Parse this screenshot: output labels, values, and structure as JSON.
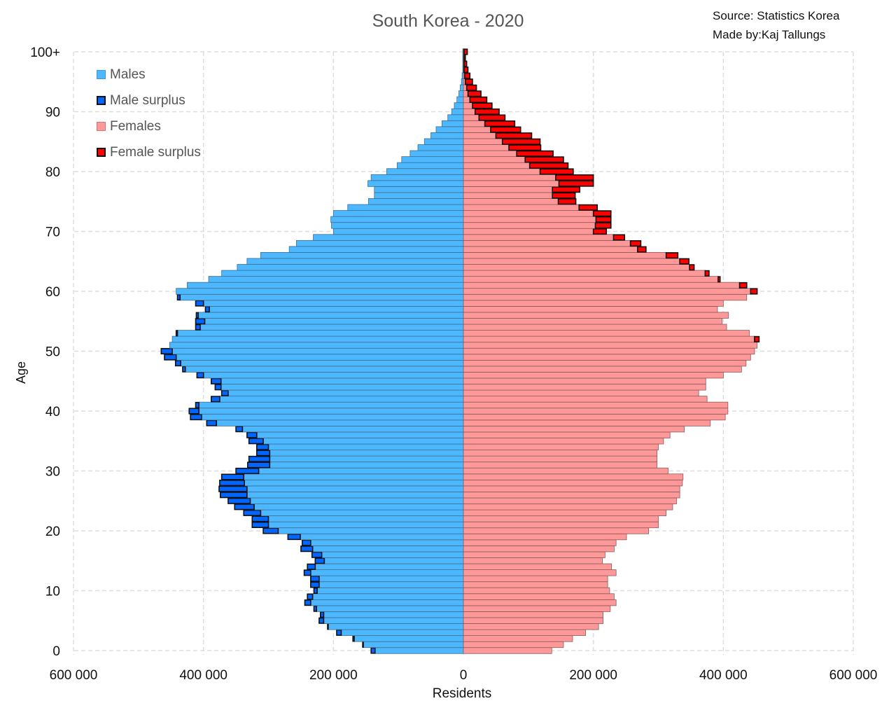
{
  "chart_data": {
    "type": "bar",
    "orientation": "horizontal-population-pyramid",
    "title": "South Korea - 2020",
    "source_lines": [
      "Source: Statistics Korea",
      "Made by:Kaj Tallungs"
    ],
    "xlabel": "Residents",
    "ylabel": "Age",
    "xlim": [
      -600000,
      600000
    ],
    "x_ticks": [
      {
        "value": -600000,
        "label": "600 000"
      },
      {
        "value": -400000,
        "label": "400 000"
      },
      {
        "value": -200000,
        "label": "200 000"
      },
      {
        "value": 0,
        "label": "0"
      },
      {
        "value": 200000,
        "label": "200 000"
      },
      {
        "value": 400000,
        "label": "400 000"
      },
      {
        "value": 600000,
        "label": "600 000"
      }
    ],
    "y_ticks": [
      {
        "value": 0,
        "label": "0"
      },
      {
        "value": 10,
        "label": "10"
      },
      {
        "value": 20,
        "label": "20"
      },
      {
        "value": 30,
        "label": "30"
      },
      {
        "value": 40,
        "label": "40"
      },
      {
        "value": 50,
        "label": "50"
      },
      {
        "value": 60,
        "label": "60"
      },
      {
        "value": 70,
        "label": "70"
      },
      {
        "value": 80,
        "label": "80"
      },
      {
        "value": 90,
        "label": "90"
      },
      {
        "value": 100,
        "label": "100+"
      }
    ],
    "grid": true,
    "legend_position": "top-left",
    "legend": [
      {
        "label": "Males",
        "color": "#4db8ff"
      },
      {
        "label": "Male surplus",
        "color": "#0066ff"
      },
      {
        "label": "Females",
        "color": "#ff9999"
      },
      {
        "label": "Female surplus",
        "color": "#ff0000"
      }
    ],
    "colors": {
      "males": "#4db8ff",
      "male_surplus": "#0066ff",
      "females": "#ff9999",
      "female_surplus": "#ff0000",
      "grid": "#dddddd"
    },
    "ages": [
      0,
      1,
      2,
      3,
      4,
      5,
      6,
      7,
      8,
      9,
      10,
      11,
      12,
      13,
      14,
      15,
      16,
      17,
      18,
      19,
      20,
      21,
      22,
      23,
      24,
      25,
      26,
      27,
      28,
      29,
      30,
      31,
      32,
      33,
      34,
      35,
      36,
      37,
      38,
      39,
      40,
      41,
      42,
      43,
      44,
      45,
      46,
      47,
      48,
      49,
      50,
      51,
      52,
      53,
      54,
      55,
      56,
      57,
      58,
      59,
      60,
      61,
      62,
      63,
      64,
      65,
      66,
      67,
      68,
      69,
      70,
      71,
      72,
      73,
      74,
      75,
      76,
      77,
      78,
      79,
      80,
      81,
      82,
      83,
      84,
      85,
      86,
      87,
      88,
      89,
      90,
      91,
      92,
      93,
      94,
      95,
      96,
      97,
      98,
      99,
      100
    ],
    "series": [
      {
        "name": "Males",
        "values": [
          142000,
          155000,
          170000,
          195000,
          209000,
          222000,
          220000,
          230000,
          244000,
          240000,
          230000,
          235000,
          235000,
          245000,
          240000,
          228000,
          233000,
          250000,
          248000,
          270000,
          308000,
          325000,
          325000,
          338000,
          352000,
          362000,
          374000,
          376000,
          375000,
          372000,
          350000,
          332000,
          330000,
          318000,
          318000,
          330000,
          333000,
          350000,
          395000,
          420000,
          422000,
          412000,
          388000,
          372000,
          382000,
          388000,
          410000,
          432000,
          443000,
          460000,
          465000,
          452000,
          448000,
          442000,
          412000,
          412000,
          411000,
          397000,
          412000,
          440000,
          442000,
          425000,
          392000,
          372000,
          348000,
          333000,
          312000,
          268000,
          257000,
          231000,
          200000,
          203000,
          204000,
          200000,
          178000,
          146000,
          137000,
          137000,
          147000,
          142000,
          118000,
          102000,
          95000,
          82000,
          70000,
          60000,
          50000,
          42000,
          33000,
          24000,
          18000,
          14000,
          10000,
          7000,
          5000,
          3000,
          2000,
          1000,
          1000,
          1000,
          1000
        ]
      },
      {
        "name": "Females",
        "values": [
          136000,
          154000,
          168000,
          188000,
          208000,
          215000,
          215000,
          226000,
          235000,
          232000,
          225000,
          222000,
          222000,
          235000,
          228000,
          214000,
          218000,
          232000,
          235000,
          251000,
          285000,
          300000,
          300000,
          312000,
          322000,
          328000,
          333000,
          333000,
          337000,
          338000,
          315000,
          298000,
          298000,
          298000,
          300000,
          308000,
          318000,
          340000,
          380000,
          403000,
          407000,
          407000,
          375000,
          362000,
          373000,
          373000,
          400000,
          428000,
          435000,
          442000,
          448000,
          452000,
          455000,
          440000,
          405000,
          398000,
          408000,
          391000,
          400000,
          436000,
          452000,
          436000,
          395000,
          378000,
          355000,
          347000,
          330000,
          281000,
          273000,
          248000,
          220000,
          227000,
          227000,
          227000,
          206000,
          173000,
          172000,
          179000,
          200000,
          200000,
          169000,
          161000,
          154000,
          138000,
          119000,
          118000,
          105000,
          88000,
          79000,
          64000,
          55000,
          44000,
          36000,
          27000,
          20000,
          14000,
          10000,
          7000,
          5000,
          3000,
          6000
        ]
      }
    ]
  }
}
